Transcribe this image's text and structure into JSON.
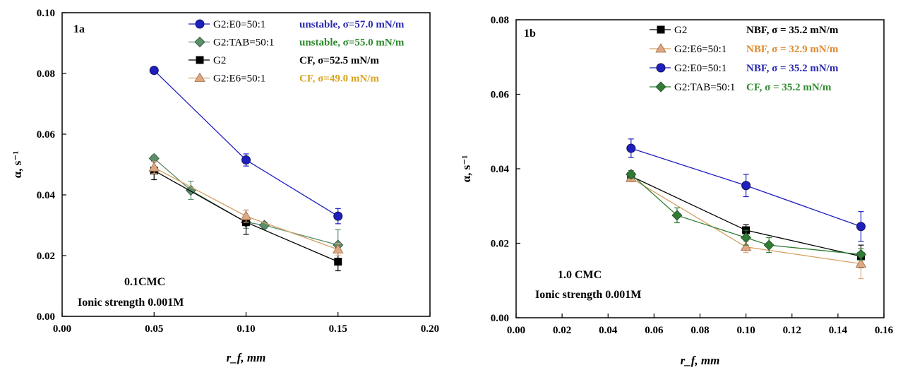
{
  "chart_data": [
    {
      "type": "scatter",
      "panel_label": "1a",
      "xlabel": "r_f, mm",
      "ylabel": "α, s⁻¹",
      "xlim": [
        0,
        0.2
      ],
      "ylim": [
        0,
        0.1
      ],
      "xticks": [
        "0.00",
        "0.05",
        "0.10",
        "0.15",
        "0.20"
      ],
      "yticks": [
        "0.00",
        "0.02",
        "0.04",
        "0.06",
        "0.08",
        "0.10"
      ],
      "grid": false,
      "legend_position": "top-right",
      "conditions": [
        "0.1CMC",
        "Ionic strength 0.001M"
      ],
      "series": [
        {
          "name": "G2:E0=50:1",
          "marker": "circle",
          "color": "#1f1fbf",
          "annotation": "unstable, σ=57.0 mN/m",
          "annotation_color": "#2a2ab0",
          "x": [
            0.05,
            0.1,
            0.15
          ],
          "y": [
            0.081,
            0.0515,
            0.033
          ],
          "err": [
            0.001,
            0.002,
            0.0025
          ]
        },
        {
          "name": "G2:TAB=50:1",
          "marker": "diamond",
          "color": "#5a8f6c",
          "annotation": "unstable, σ=55.0 mN/m",
          "annotation_color": "#2e8b2e",
          "x": [
            0.05,
            0.07,
            0.1,
            0.11,
            0.15
          ],
          "y": [
            0.052,
            0.0415,
            0.031,
            0.03,
            0.0235
          ],
          "err": [
            0.001,
            0.003,
            0.002,
            0.001,
            0.005
          ]
        },
        {
          "name": "G2",
          "marker": "square",
          "color": "#000000",
          "annotation": "CF, σ=52.5 mN/m",
          "annotation_color": "#000000",
          "x": [
            0.05,
            0.1,
            0.15
          ],
          "y": [
            0.048,
            0.031,
            0.018
          ],
          "err": [
            0.003,
            0.004,
            0.003
          ]
        },
        {
          "name": "G2:E6=50:1",
          "marker": "triangle",
          "color": "#e0a882",
          "annotation": "CF, σ=49.0 mN/m",
          "annotation_color": "#d9a520",
          "x": [
            0.05,
            0.1,
            0.15
          ],
          "y": [
            0.049,
            0.033,
            0.022
          ],
          "err": [
            0.002,
            0.002,
            0.002
          ]
        }
      ]
    },
    {
      "type": "scatter",
      "panel_label": "1b",
      "xlabel": "r_f, mm",
      "ylabel": "α, s⁻¹",
      "xlim": [
        0,
        0.16
      ],
      "ylim": [
        0,
        0.08
      ],
      "xticks": [
        "0.00",
        "0.02",
        "0.04",
        "0.06",
        "0.08",
        "0.10",
        "0.12",
        "0.14",
        "0.16"
      ],
      "yticks": [
        "0.00",
        "0.02",
        "0.04",
        "0.06",
        "0.08"
      ],
      "grid": false,
      "legend_position": "top-right",
      "conditions": [
        "1.0 CMC",
        "Ionic strength 0.001M"
      ],
      "series": [
        {
          "name": "G2",
          "marker": "square",
          "color": "#000000",
          "annotation": "NBF, σ = 35.2 mN/m",
          "annotation_color": "#000000",
          "x": [
            0.05,
            0.1,
            0.15
          ],
          "y": [
            0.038,
            0.0235,
            0.0165
          ],
          "err": [
            0.001,
            0.0015,
            0.003
          ]
        },
        {
          "name": "G2:E6=50:1",
          "marker": "triangle",
          "color": "#e0a882",
          "annotation": "NBF, σ = 32.9 mN/m",
          "annotation_color": "#e08a30",
          "x": [
            0.05,
            0.1,
            0.15
          ],
          "y": [
            0.0375,
            0.019,
            0.0145
          ],
          "err": [
            0.001,
            0.0015,
            0.004
          ]
        },
        {
          "name": "G2:E0=50:1",
          "marker": "circle",
          "color": "#1f1fbf",
          "annotation": "NBF, σ = 35.2 mN/m",
          "annotation_color": "#2a2ab0",
          "x": [
            0.05,
            0.1,
            0.15
          ],
          "y": [
            0.0455,
            0.0355,
            0.0245
          ],
          "err": [
            0.0025,
            0.003,
            0.004
          ]
        },
        {
          "name": "G2:TAB=50:1",
          "marker": "diamond",
          "color": "#2e7d32",
          "annotation": "CF,    σ = 35.2 mN/m",
          "annotation_color": "#2e8b2e",
          "x": [
            0.05,
            0.07,
            0.1,
            0.11,
            0.15
          ],
          "y": [
            0.0385,
            0.0275,
            0.0215,
            0.0195,
            0.017
          ],
          "err": [
            0.001,
            0.002,
            0.002,
            0.002,
            0.0015
          ]
        }
      ]
    }
  ]
}
